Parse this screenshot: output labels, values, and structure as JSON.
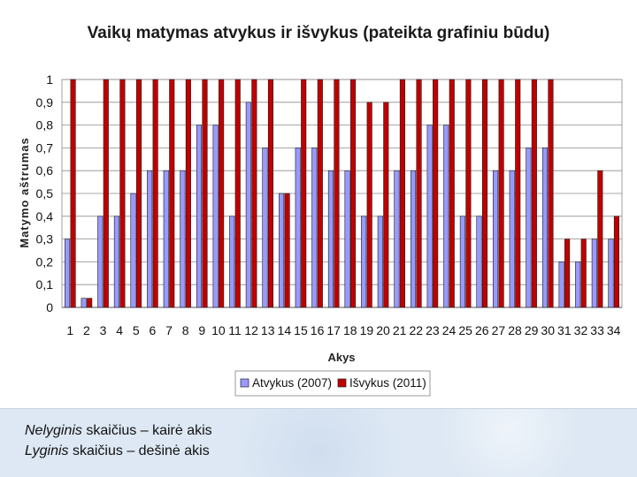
{
  "chart_data": {
    "type": "bar",
    "title": "Vaikų matymas atvykus ir išvykus (pateikta grafiniu būdu)",
    "xlabel": "Akys",
    "ylabel": "Matymo aštrumas",
    "ylim": [
      0,
      1
    ],
    "yticks": [
      "0",
      "0,1",
      "0,2",
      "0,3",
      "0,4",
      "0,5",
      "0,6",
      "0,7",
      "0,8",
      "0,9",
      "1"
    ],
    "categories": [
      "1",
      "2",
      "3",
      "4",
      "5",
      "6",
      "7",
      "8",
      "9",
      "10",
      "11",
      "12",
      "13",
      "14",
      "15",
      "16",
      "17",
      "18",
      "19",
      "20",
      "21",
      "22",
      "23",
      "24",
      "25",
      "26",
      "27",
      "28",
      "29",
      "30",
      "31",
      "32",
      "33",
      "34"
    ],
    "series": [
      {
        "name": "Atvykus (2007)",
        "color": "#9999ff",
        "values": [
          0.3,
          0.04,
          0.4,
          0.4,
          0.5,
          0.6,
          0.6,
          0.6,
          0.8,
          0.8,
          0.4,
          0.9,
          0.7,
          0.5,
          0.7,
          0.7,
          0.6,
          0.6,
          0.4,
          0.4,
          0.6,
          0.6,
          0.8,
          0.8,
          0.4,
          0.4,
          0.6,
          0.6,
          0.7,
          0.7,
          0.2,
          0.2,
          0.3,
          0.3
        ]
      },
      {
        "name": "Išvykus (2011)",
        "color": "#c00000",
        "values": [
          1,
          0.04,
          1,
          1,
          1,
          1,
          1,
          1,
          1,
          1,
          1,
          1,
          1,
          0.5,
          1,
          1,
          1,
          1,
          0.9,
          0.9,
          1,
          1,
          1,
          1,
          1,
          1,
          1,
          1,
          1,
          1,
          0.3,
          0.3,
          0.6,
          0.4
        ]
      }
    ],
    "grid": true,
    "legend_position": "bottom"
  },
  "footnotes": [
    {
      "italic": "Nelyginis",
      "rest": " skaičius – kairė akis"
    },
    {
      "italic": "Lyginis",
      "rest": " skaičius – dešinė akis"
    }
  ]
}
